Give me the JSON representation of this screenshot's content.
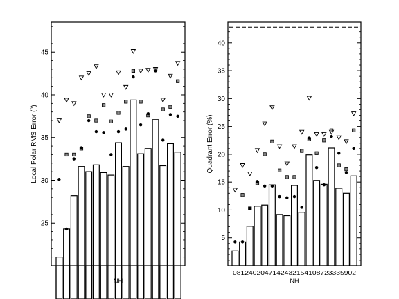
{
  "chart_data": [
    {
      "type": "bar",
      "id": "left",
      "ylabel": "Local Polar RMS Error (°)",
      "xlabel": "NH",
      "ylim": [
        20,
        48.5
      ],
      "yticks": [
        25,
        30,
        35,
        40,
        45
      ],
      "reference_line": 47,
      "bar_baseline": 13.2,
      "values": [
        21.0,
        24.3,
        28.2,
        31.6,
        31.0,
        31.8,
        30.9,
        30.6,
        34.4,
        31.6,
        39.4,
        33.1,
        33.7,
        37.1,
        31.7,
        34.3,
        33.3
      ],
      "triangles": [
        37.0,
        39.4,
        39.0,
        42.0,
        42.5,
        43.3,
        40.0,
        40.0,
        42.6,
        40.9,
        45.1,
        42.8,
        42.9,
        43.0,
        39.4,
        42.2,
        43.7
      ],
      "squares": [
        null,
        33.0,
        33.0,
        33.7,
        37.5,
        37.0,
        38.8,
        36.9,
        37.9,
        39.2,
        42.8,
        39.2,
        37.6,
        43.0,
        38.3,
        38.6,
        41.6
      ],
      "dots": [
        30.1,
        24.3,
        32.5,
        33.8,
        37.0,
        35.7,
        35.6,
        33.0,
        35.7,
        36.0,
        42.1,
        36.5,
        37.8,
        42.8,
        34.7,
        37.7,
        37.5
      ],
      "grid": false
    },
    {
      "type": "bar",
      "id": "right",
      "ylabel": "Quadrant Error (%)",
      "xlabel": "NH",
      "xtick_text": "0812402047142432154108723335902",
      "ylim": [
        0,
        43.7
      ],
      "yticks": [
        5,
        10,
        15,
        20,
        25,
        30,
        35,
        40
      ],
      "reference_line": 42.8,
      "values": [
        2.7,
        4.3,
        7.1,
        10.7,
        10.9,
        14.5,
        9.2,
        9.0,
        14.4,
        9.6,
        19.9,
        15.3,
        14.6,
        21.1,
        13.9,
        13.0,
        16.1
      ],
      "triangles": [
        13.6,
        18.0,
        16.5,
        20.7,
        25.5,
        28.4,
        21.4,
        18.3,
        21.4,
        24.0,
        30.1,
        23.6,
        23.6,
        24.0,
        23.0,
        22.3,
        27.3
      ],
      "squares": [
        null,
        12.7,
        10.3,
        14.8,
        20.0,
        22.3,
        17.1,
        15.9,
        15.9,
        20.6,
        22.7,
        20.2,
        22.5,
        24.3,
        18.0,
        17.3,
        24.3
      ],
      "dots": [
        4.3,
        4.3,
        10.3,
        15.1,
        14.3,
        14.3,
        12.4,
        12.2,
        12.4,
        10.5,
        22.9,
        17.6,
        14.5,
        23.2,
        20.2,
        16.7,
        21.0
      ],
      "grid": false
    }
  ]
}
